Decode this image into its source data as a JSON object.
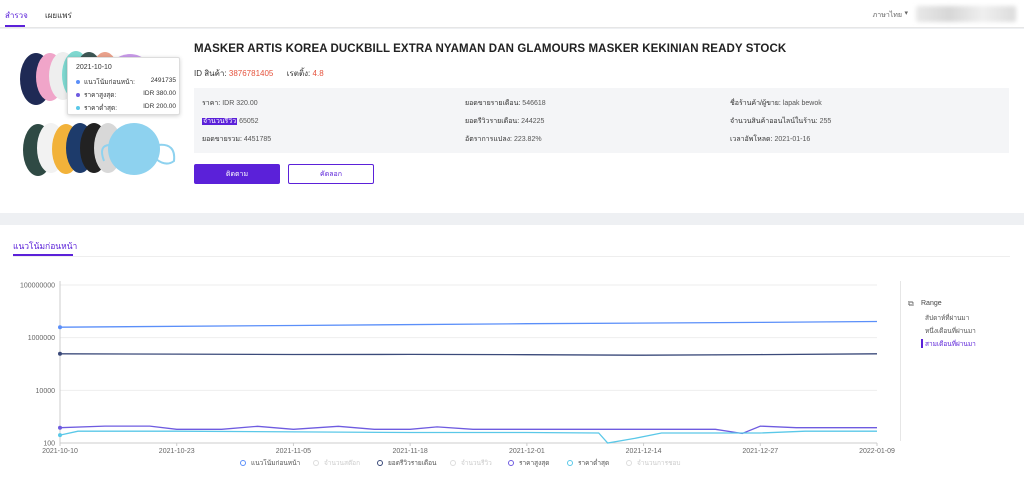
{
  "nav": {
    "tabs": [
      {
        "label": "สำรวจ"
      },
      {
        "label": "เผยแพร่"
      }
    ],
    "language": "ภาษาไทย"
  },
  "product": {
    "title": "MASKER ARTIS KOREA DUCKBILL EXTRA NYAMAN DAN GLAMOURS MASKER KEKINIAN READY STOCK",
    "id_label": "ID สินค้า:",
    "id_value": "3876781405",
    "rating_label": "เรตติ้ง:",
    "rating_value": "4.8",
    "info": {
      "price_label": "ราคา:",
      "price_value": "IDR 320.00",
      "monthly_sales_label": "ยอดขายรายเดือน:",
      "monthly_sales_value": "546618",
      "shop_label": "ชื่อร้านค้า/ผู้ขาย:",
      "shop_value": "lapak bewok",
      "reviews_label": "จำนวนรีวิว",
      "reviews_value": "65052",
      "monthly_revenue_label": "ยอดรีวิวรายเดือน:",
      "monthly_revenue_value": "244225",
      "online_count_label": "จำนวนสินค้าออนไลน์ในร้าน:",
      "online_count_value": "255",
      "total_sales_label": "ยอดขายรวม:",
      "total_sales_value": "4451785",
      "conversion_label": "อัตราการแปลง:",
      "conversion_value": "223.82%",
      "upload_label": "เวลาอัพโหลด:",
      "upload_value": "2021-01-16"
    },
    "buttons": {
      "track": "ติดตาม",
      "copy": "คัดลอก"
    }
  },
  "trend": {
    "tab_label": "แนวโน้มก่อนหน้า",
    "range": {
      "title": "Range",
      "options": [
        "สัปดาห์ที่ผ่านมา",
        "หนึ่งเดือนที่ผ่านมา",
        "สามเดือนที่ผ่านมา"
      ],
      "selected": "สามเดือนที่ผ่านมา"
    },
    "tooltip": {
      "date": "2021-10-10",
      "rows": [
        {
          "label": "แนวโน้มก่อนหน้า:",
          "value": "2491735",
          "color": "#5b8ff9"
        },
        {
          "label": "ราคาสูงสุด:",
          "value": "IDR 380.00",
          "color": "#6e5be0"
        },
        {
          "label": "ราคาต่ำสุด:",
          "value": "IDR 200.00",
          "color": "#5ac8e8"
        }
      ]
    },
    "legend": [
      {
        "label": "แนวโน้มก่อนหน้า",
        "color": "#5b8ff9",
        "active": true
      },
      {
        "label": "จำนวนสต๊อก",
        "color": "#cccccc",
        "active": false
      },
      {
        "label": "ยอดรีวิวรายเดือน",
        "color": "#3b4a7a",
        "active": true
      },
      {
        "label": "จำนวนรีวิว",
        "color": "#cccccc",
        "active": false
      },
      {
        "label": "ราคาสูงสุด",
        "color": "#6e5be0",
        "active": true
      },
      {
        "label": "ราคาต่ำสุด",
        "color": "#5ac8e8",
        "active": true
      },
      {
        "label": "จำนวนการชอบ",
        "color": "#cccccc",
        "active": false
      }
    ]
  },
  "chart_data": {
    "type": "line",
    "y_scale": "log",
    "ylim": [
      100,
      100000000
    ],
    "y_ticks": [
      "100000000",
      "1000000",
      "10000",
      "100"
    ],
    "x_ticks": [
      "2021-10-10",
      "2021-10-23",
      "2021-11-05",
      "2021-11-18",
      "2021-12-01",
      "2021-12-14",
      "2021-12-27",
      "2022-01-09"
    ],
    "x_range": [
      "2021-10-10",
      "2022-01-09"
    ],
    "series": [
      {
        "name": "แนวโน้มก่อนหน้า",
        "color": "#5b8ff9",
        "points": [
          [
            "2021-10-10",
            2491735
          ],
          [
            "2021-11-05",
            2900000
          ],
          [
            "2021-12-01",
            3400000
          ],
          [
            "2021-12-27",
            3800000
          ],
          [
            "2022-01-09",
            4100000
          ]
        ]
      },
      {
        "name": "ยอดรีวิวรายเดือน",
        "color": "#3b4a7a",
        "points": [
          [
            "2021-10-10",
            244225
          ],
          [
            "2021-10-23",
            238000
          ],
          [
            "2021-11-05",
            230000
          ],
          [
            "2021-11-18",
            232000
          ],
          [
            "2021-12-01",
            225000
          ],
          [
            "2021-12-14",
            216000
          ],
          [
            "2021-12-27",
            228000
          ],
          [
            "2022-01-09",
            244225
          ]
        ]
      },
      {
        "name": "ราคาสูงสุด",
        "color": "#6e5be0",
        "points": [
          [
            "2021-10-10",
            380
          ],
          [
            "2021-10-15",
            440
          ],
          [
            "2021-10-20",
            440
          ],
          [
            "2021-10-23",
            330
          ],
          [
            "2021-10-28",
            330
          ],
          [
            "2021-11-01",
            430
          ],
          [
            "2021-11-05",
            330
          ],
          [
            "2021-11-10",
            430
          ],
          [
            "2021-11-14",
            330
          ],
          [
            "2021-11-18",
            330
          ],
          [
            "2021-11-21",
            410
          ],
          [
            "2021-11-25",
            330
          ],
          [
            "2021-12-01",
            330
          ],
          [
            "2021-12-14",
            330
          ],
          [
            "2021-12-22",
            330
          ],
          [
            "2021-12-25",
            230
          ],
          [
            "2021-12-27",
            440
          ],
          [
            "2021-12-31",
            380
          ],
          [
            "2022-01-09",
            380
          ]
        ]
      },
      {
        "name": "ราคาต่ำสุด",
        "color": "#5ac8e8",
        "points": [
          [
            "2021-10-10",
            200
          ],
          [
            "2021-10-12",
            280
          ],
          [
            "2021-10-23",
            280
          ],
          [
            "2021-11-18",
            250
          ],
          [
            "2021-12-01",
            250
          ],
          [
            "2021-12-09",
            240
          ],
          [
            "2021-12-10",
            100
          ],
          [
            "2021-12-13",
            150
          ],
          [
            "2021-12-16",
            240
          ],
          [
            "2021-12-27",
            240
          ],
          [
            "2022-01-01",
            280
          ],
          [
            "2022-01-09",
            280
          ]
        ]
      }
    ]
  }
}
